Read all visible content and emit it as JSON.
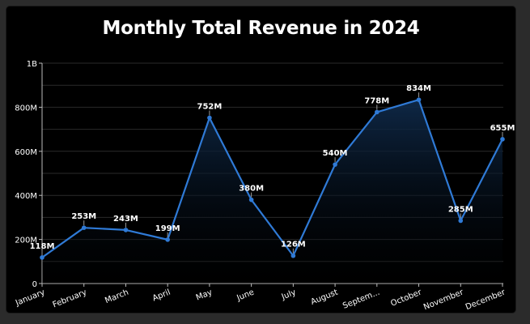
{
  "chart_data": {
    "type": "area",
    "title": "Monthly Total Revenue in 2024",
    "xlabel": "",
    "ylabel": "",
    "categories": [
      "January",
      "February",
      "March",
      "April",
      "May",
      "June",
      "July",
      "August",
      "September",
      "October",
      "November",
      "December"
    ],
    "x_tick_labels": [
      "January",
      "February",
      "March",
      "April",
      "May",
      "June",
      "July",
      "August",
      "Septem...",
      "October",
      "November",
      "December"
    ],
    "series": [
      {
        "values": [
          118000000,
          253000000,
          243000000,
          199000000,
          752000000,
          380000000,
          126000000,
          540000000,
          778000000,
          834000000,
          285000000,
          655000000
        ],
        "data_labels": [
          "118M",
          "253M",
          "243M",
          "199M",
          "752M",
          "380M",
          "126M",
          "540M",
          "778M",
          "834M",
          "285M",
          "655M"
        ]
      }
    ],
    "ylim": [
      0,
      1000000000
    ],
    "y_ticks": [
      0,
      200000000,
      400000000,
      600000000,
      800000000,
      1000000000
    ],
    "y_tick_labels": [
      "0",
      "200M",
      "400M",
      "600M",
      "800M",
      "1B"
    ],
    "grid": true,
    "legend": "none",
    "colors": {
      "line": "#2f7ad6",
      "fill_top": "#0f2a4a",
      "background": "#000000",
      "text": "#ffffff",
      "grid": "#2a2a2a"
    }
  }
}
